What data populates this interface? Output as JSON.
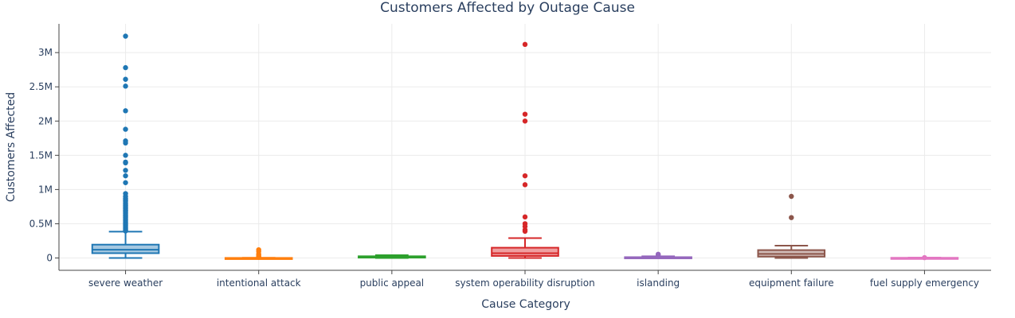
{
  "chart_data": {
    "type": "box",
    "title": "Customers Affected by Outage Cause",
    "xlabel": "Cause Category",
    "ylabel": "Customers Affected",
    "ylim": [
      -180000,
      3420000
    ],
    "yticks": [
      0,
      500000,
      1000000,
      1500000,
      2000000,
      2500000,
      3000000
    ],
    "ytick_labels": [
      "0",
      "0.5M",
      "1M",
      "1.5M",
      "2M",
      "2.5M",
      "3M"
    ],
    "grid": true,
    "legend": "none",
    "categories": [
      "severe weather",
      "intentional attack",
      "public appeal",
      "system operability disruption",
      "islanding",
      "equipment failure",
      "fuel supply emergency"
    ],
    "series": [
      {
        "category": "severe weather",
        "color": "#1f77b4",
        "fill": "#a5c8e1",
        "min": 0,
        "q1": 70000,
        "median": 120000,
        "q3": 195000,
        "max": 385000,
        "outliers": [
          3240000,
          2780000,
          2610000,
          2510000,
          2150000,
          1880000,
          1710000,
          1680000,
          1500000,
          1400000,
          1390000,
          1280000,
          1200000,
          1100000,
          940000,
          900000,
          870000,
          850000,
          830000,
          800000,
          780000,
          760000,
          740000,
          720000,
          700000,
          690000,
          670000,
          650000,
          630000,
          610000,
          590000,
          570000,
          550000,
          530000,
          510000,
          490000,
          470000,
          450000,
          430000,
          410000,
          395000
        ]
      },
      {
        "category": "intentional attack",
        "color": "#ff7f0e",
        "fill": "#ffcc9f",
        "min": 0,
        "q1": 0,
        "median": 0,
        "q3": 1000,
        "max": 3000,
        "outliers": [
          120000,
          95000,
          60000,
          40000,
          25000,
          15000,
          10000
        ]
      },
      {
        "category": "public appeal",
        "color": "#2ca02c",
        "fill": "#abd9ab",
        "min": 0,
        "q1": 5000,
        "median": 10000,
        "q3": 25000,
        "max": 40000,
        "outliers": []
      },
      {
        "category": "system operability disruption",
        "color": "#d62728",
        "fill": "#ef9fa0",
        "min": 0,
        "q1": 30000,
        "median": 70000,
        "q3": 150000,
        "max": 290000,
        "outliers": [
          3120000,
          2100000,
          2000000,
          1200000,
          1070000,
          600000,
          500000,
          460000,
          410000,
          390000
        ]
      },
      {
        "category": "islanding",
        "color": "#9467bd",
        "fill": "#d4c2e5",
        "min": 0,
        "q1": 0,
        "median": 5000,
        "q3": 12000,
        "max": 25000,
        "outliers": [
          55000,
          45000
        ]
      },
      {
        "category": "equipment failure",
        "color": "#8c564b",
        "fill": "#d1bbb7",
        "min": 0,
        "q1": 20000,
        "median": 60000,
        "q3": 115000,
        "max": 180000,
        "outliers": [
          900000,
          590000
        ]
      },
      {
        "category": "fuel supply emergency",
        "color": "#e377c2",
        "fill": "#f4c9e7",
        "min": 0,
        "q1": 0,
        "median": 0,
        "q3": 3000,
        "max": 6000,
        "outliers": [
          5000
        ]
      }
    ]
  }
}
